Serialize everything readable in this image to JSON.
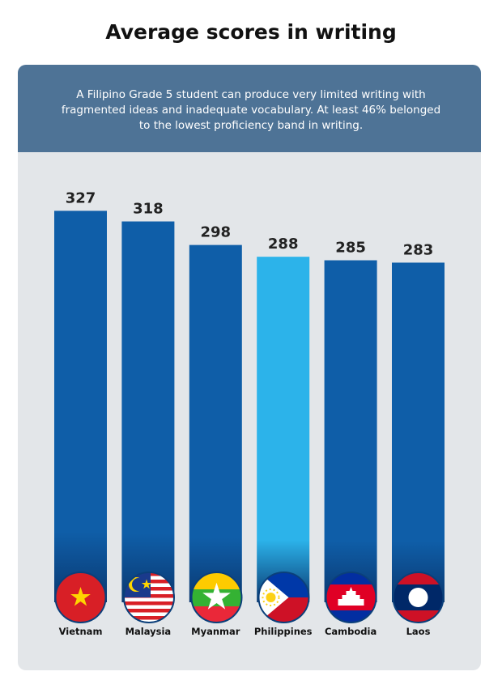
{
  "chart_data": {
    "type": "bar",
    "title": "Average scores in writing",
    "subtitle": [
      "A Filipino Grade 5 student can produce very limited writing with",
      "fragmented ideas and inadequate vocabulary. At least 46% belonged",
      "to the lowest proficiency band in writing."
    ],
    "categories": [
      "Vietnam",
      "Malaysia",
      "Myanmar",
      "Philippines",
      "Cambodia",
      "Laos"
    ],
    "values": [
      327,
      318,
      298,
      288,
      285,
      283
    ],
    "colors": [
      "#0f5ea8",
      "#0f5ea8",
      "#0f5ea8",
      "#2cb3ea",
      "#0f5ea8",
      "#0f5ea8"
    ],
    "ylim": [
      0,
      350
    ]
  }
}
